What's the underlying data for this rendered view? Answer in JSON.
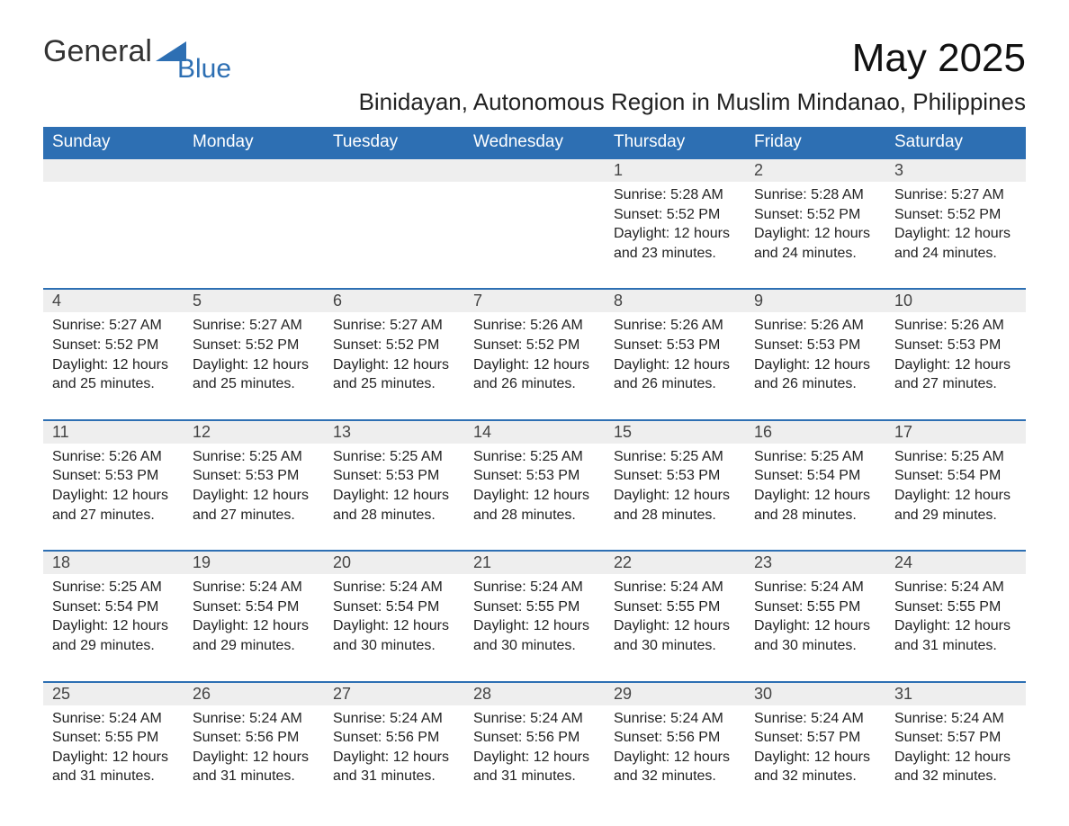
{
  "logo": {
    "text1": "General",
    "text2": "Blue"
  },
  "title": "May 2025",
  "subtitle": "Binidayan, Autonomous Region in Muslim Mindanao, Philippines",
  "colors": {
    "headerBg": "#2d6fb3",
    "headerText": "#ffffff",
    "dayBg": "#eeeeee",
    "bodyText": "#222222",
    "pageBg": "#ffffff"
  },
  "dayNames": [
    "Sunday",
    "Monday",
    "Tuesday",
    "Wednesday",
    "Thursday",
    "Friday",
    "Saturday"
  ],
  "weeks": [
    [
      null,
      null,
      null,
      null,
      {
        "n": "1",
        "sr": "5:28 AM",
        "ss": "5:52 PM",
        "dl": "12 hours and 23 minutes."
      },
      {
        "n": "2",
        "sr": "5:28 AM",
        "ss": "5:52 PM",
        "dl": "12 hours and 24 minutes."
      },
      {
        "n": "3",
        "sr": "5:27 AM",
        "ss": "5:52 PM",
        "dl": "12 hours and 24 minutes."
      }
    ],
    [
      {
        "n": "4",
        "sr": "5:27 AM",
        "ss": "5:52 PM",
        "dl": "12 hours and 25 minutes."
      },
      {
        "n": "5",
        "sr": "5:27 AM",
        "ss": "5:52 PM",
        "dl": "12 hours and 25 minutes."
      },
      {
        "n": "6",
        "sr": "5:27 AM",
        "ss": "5:52 PM",
        "dl": "12 hours and 25 minutes."
      },
      {
        "n": "7",
        "sr": "5:26 AM",
        "ss": "5:52 PM",
        "dl": "12 hours and 26 minutes."
      },
      {
        "n": "8",
        "sr": "5:26 AM",
        "ss": "5:53 PM",
        "dl": "12 hours and 26 minutes."
      },
      {
        "n": "9",
        "sr": "5:26 AM",
        "ss": "5:53 PM",
        "dl": "12 hours and 26 minutes."
      },
      {
        "n": "10",
        "sr": "5:26 AM",
        "ss": "5:53 PM",
        "dl": "12 hours and 27 minutes."
      }
    ],
    [
      {
        "n": "11",
        "sr": "5:26 AM",
        "ss": "5:53 PM",
        "dl": "12 hours and 27 minutes."
      },
      {
        "n": "12",
        "sr": "5:25 AM",
        "ss": "5:53 PM",
        "dl": "12 hours and 27 minutes."
      },
      {
        "n": "13",
        "sr": "5:25 AM",
        "ss": "5:53 PM",
        "dl": "12 hours and 28 minutes."
      },
      {
        "n": "14",
        "sr": "5:25 AM",
        "ss": "5:53 PM",
        "dl": "12 hours and 28 minutes."
      },
      {
        "n": "15",
        "sr": "5:25 AM",
        "ss": "5:53 PM",
        "dl": "12 hours and 28 minutes."
      },
      {
        "n": "16",
        "sr": "5:25 AM",
        "ss": "5:54 PM",
        "dl": "12 hours and 28 minutes."
      },
      {
        "n": "17",
        "sr": "5:25 AM",
        "ss": "5:54 PM",
        "dl": "12 hours and 29 minutes."
      }
    ],
    [
      {
        "n": "18",
        "sr": "5:25 AM",
        "ss": "5:54 PM",
        "dl": "12 hours and 29 minutes."
      },
      {
        "n": "19",
        "sr": "5:24 AM",
        "ss": "5:54 PM",
        "dl": "12 hours and 29 minutes."
      },
      {
        "n": "20",
        "sr": "5:24 AM",
        "ss": "5:54 PM",
        "dl": "12 hours and 30 minutes."
      },
      {
        "n": "21",
        "sr": "5:24 AM",
        "ss": "5:55 PM",
        "dl": "12 hours and 30 minutes."
      },
      {
        "n": "22",
        "sr": "5:24 AM",
        "ss": "5:55 PM",
        "dl": "12 hours and 30 minutes."
      },
      {
        "n": "23",
        "sr": "5:24 AM",
        "ss": "5:55 PM",
        "dl": "12 hours and 30 minutes."
      },
      {
        "n": "24",
        "sr": "5:24 AM",
        "ss": "5:55 PM",
        "dl": "12 hours and 31 minutes."
      }
    ],
    [
      {
        "n": "25",
        "sr": "5:24 AM",
        "ss": "5:55 PM",
        "dl": "12 hours and 31 minutes."
      },
      {
        "n": "26",
        "sr": "5:24 AM",
        "ss": "5:56 PM",
        "dl": "12 hours and 31 minutes."
      },
      {
        "n": "27",
        "sr": "5:24 AM",
        "ss": "5:56 PM",
        "dl": "12 hours and 31 minutes."
      },
      {
        "n": "28",
        "sr": "5:24 AM",
        "ss": "5:56 PM",
        "dl": "12 hours and 31 minutes."
      },
      {
        "n": "29",
        "sr": "5:24 AM",
        "ss": "5:56 PM",
        "dl": "12 hours and 32 minutes."
      },
      {
        "n": "30",
        "sr": "5:24 AM",
        "ss": "5:57 PM",
        "dl": "12 hours and 32 minutes."
      },
      {
        "n": "31",
        "sr": "5:24 AM",
        "ss": "5:57 PM",
        "dl": "12 hours and 32 minutes."
      }
    ]
  ],
  "labels": {
    "sunrise": "Sunrise: ",
    "sunset": "Sunset: ",
    "daylight": "Daylight: "
  }
}
